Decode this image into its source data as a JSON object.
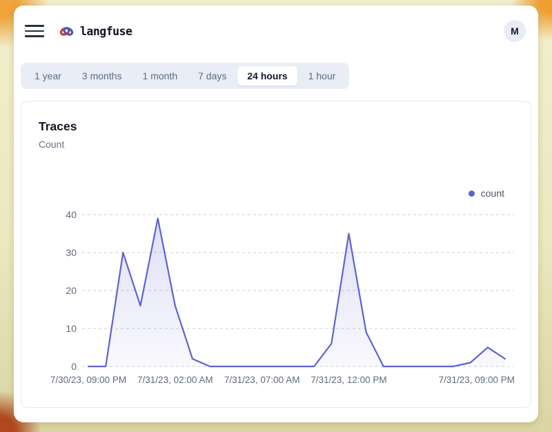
{
  "header": {
    "app_name": "langfuse",
    "avatar_initial": "M"
  },
  "time_range_tabs": [
    {
      "label": "1 year",
      "selected": false
    },
    {
      "label": "3 months",
      "selected": false
    },
    {
      "label": "1 month",
      "selected": false
    },
    {
      "label": "7 days",
      "selected": false
    },
    {
      "label": "24 hours",
      "selected": true
    },
    {
      "label": "1 hour",
      "selected": false
    }
  ],
  "card": {
    "title": "Traces",
    "subtitle": "Count"
  },
  "chart_data": {
    "type": "area",
    "title": "Traces",
    "ylabel": "Count",
    "series": [
      {
        "name": "count",
        "values": [
          0,
          0,
          30,
          16,
          39,
          16,
          2,
          0,
          0,
          0,
          0,
          0,
          0,
          0,
          6,
          35,
          9,
          0,
          0,
          0,
          0,
          0,
          1,
          5,
          2
        ]
      }
    ],
    "x_tick_labels": [
      "7/30/23, 09:00 PM",
      "7/31/23, 02:00 AM",
      "7/31/23, 07:00 AM",
      "7/31/23, 12:00 PM",
      "7/31/23, 09:00 PM"
    ],
    "x_tick_positions": [
      0,
      5,
      10,
      15,
      24
    ],
    "ylim": [
      0,
      40
    ],
    "yticks": [
      0,
      10,
      20,
      30,
      40
    ],
    "grid": "horizontal-dashed",
    "legend": {
      "position": "top-right",
      "items": [
        {
          "label": "count",
          "color": "#5d62d0"
        }
      ]
    }
  },
  "colors": {
    "accent": "#5d62d0",
    "grid_line": "#c8ccd4",
    "axis_text": "#5f6b7a",
    "tab_bar_bg": "#e9edf6",
    "frame_orange": "#f0a43c",
    "frame_tan": "#dbd5a4",
    "frame_rust": "#b0471e"
  }
}
